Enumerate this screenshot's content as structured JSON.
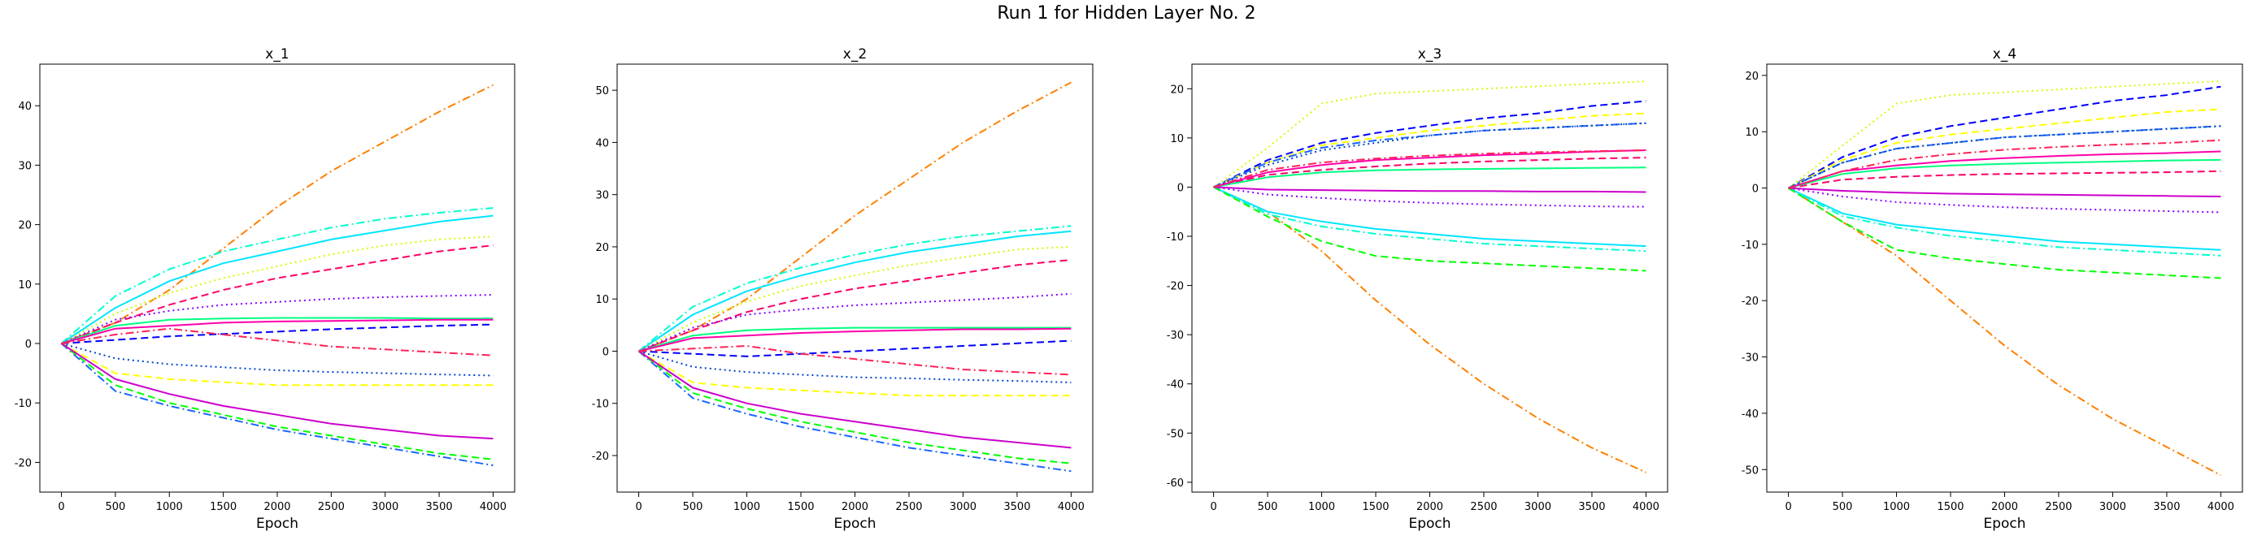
{
  "figure": {
    "suptitle": "Run 1 for Hidden Layer No. 2"
  },
  "series_colors": [
    "#ff8000",
    "#00ffcc",
    "#00e5ff",
    "#ccff00",
    "#ff0066",
    "#0000ff",
    "#8800ff",
    "#00ff80",
    "#ff00aa",
    "#ffff00",
    "#1a66ff",
    "#00ff00",
    "#0044cc",
    "#cc00cc",
    "#ff2255"
  ],
  "series_styles": [
    "dashdot",
    "dashdot",
    "solid",
    "dotted",
    "dashed",
    "dashed",
    "dotted",
    "solid",
    "solid",
    "dashed",
    "dashdot",
    "dashed",
    "dotted",
    "solid",
    "dashdot"
  ],
  "chart_data": [
    {
      "type": "line",
      "title": "x_1",
      "xlabel": "Epoch",
      "ylabel": "",
      "xlim": [
        -200,
        4200
      ],
      "ylim": [
        -25,
        47
      ],
      "xticks": [
        0,
        500,
        1000,
        1500,
        2000,
        2500,
        3000,
        3500,
        4000
      ],
      "yticks": [
        -20,
        -10,
        0,
        10,
        20,
        30,
        40
      ],
      "x": [
        0,
        500,
        1000,
        1500,
        2000,
        2500,
        3000,
        3500,
        4000
      ],
      "series": [
        {
          "values": [
            0,
            3.5,
            9,
            16,
            23,
            29,
            34,
            39,
            43.5
          ]
        },
        {
          "values": [
            0,
            8,
            12.5,
            15.5,
            17.5,
            19.5,
            21,
            22,
            22.8
          ]
        },
        {
          "values": [
            0,
            6,
            10.5,
            13.5,
            15.5,
            17.5,
            19,
            20.5,
            21.5
          ]
        },
        {
          "values": [
            0,
            5,
            8.5,
            11,
            13,
            15,
            16.5,
            17.5,
            18
          ]
        },
        {
          "values": [
            0,
            3.5,
            6.5,
            9,
            11,
            12.5,
            14,
            15.5,
            16.5
          ]
        },
        {
          "values": [
            0,
            0.6,
            1.2,
            1.6,
            2,
            2.4,
            2.7,
            3,
            3.2
          ]
        },
        {
          "values": [
            0,
            4,
            5.5,
            6.5,
            7,
            7.5,
            7.8,
            8,
            8.2
          ]
        },
        {
          "values": [
            0,
            3,
            4,
            4.2,
            4.3,
            4.3,
            4.3,
            4.2,
            4.2
          ]
        },
        {
          "values": [
            0,
            2.5,
            3,
            3.5,
            3.7,
            3.8,
            3.9,
            4,
            4
          ]
        },
        {
          "values": [
            0,
            -5,
            -6,
            -6.5,
            -7,
            -7,
            -7,
            -7,
            -7
          ]
        },
        {
          "values": [
            0,
            -8,
            -10.5,
            -12.5,
            -14.5,
            -16,
            -17.5,
            -19,
            -20.5
          ]
        },
        {
          "values": [
            0,
            -7,
            -10,
            -12,
            -14,
            -15.5,
            -17,
            -18.5,
            -19.5
          ]
        },
        {
          "values": [
            0,
            -2.5,
            -3.5,
            -4,
            -4.5,
            -4.8,
            -5,
            -5.2,
            -5.4
          ]
        },
        {
          "values": [
            0,
            -6,
            -8.5,
            -10.5,
            -12,
            -13.5,
            -14.5,
            -15.5,
            -16
          ]
        },
        {
          "values": [
            0,
            1.5,
            2.5,
            1.5,
            0.5,
            -0.5,
            -1,
            -1.5,
            -2
          ]
        }
      ]
    },
    {
      "type": "line",
      "title": "x_2",
      "xlabel": "Epoch",
      "ylabel": "",
      "xlim": [
        -200,
        4200
      ],
      "ylim": [
        -27,
        55
      ],
      "xticks": [
        0,
        500,
        1000,
        1500,
        2000,
        2500,
        3000,
        3500,
        4000
      ],
      "yticks": [
        -20,
        -10,
        0,
        10,
        20,
        30,
        40,
        50
      ],
      "x": [
        0,
        500,
        1000,
        1500,
        2000,
        2500,
        3000,
        3500,
        4000
      ],
      "series": [
        {
          "values": [
            0,
            4,
            10,
            18,
            26,
            33,
            40,
            46,
            51.5
          ]
        },
        {
          "values": [
            0,
            8.5,
            13,
            16,
            18.5,
            20.5,
            22,
            23,
            24
          ]
        },
        {
          "values": [
            0,
            7,
            11.5,
            14.5,
            17,
            19,
            20.5,
            22,
            23
          ]
        },
        {
          "values": [
            0,
            5.5,
            9.5,
            12.5,
            14.5,
            16.5,
            18,
            19.5,
            20
          ]
        },
        {
          "values": [
            0,
            4,
            7.5,
            10,
            12,
            13.5,
            15,
            16.5,
            17.5
          ]
        },
        {
          "values": [
            0,
            -0.5,
            -1,
            -0.5,
            0,
            0.5,
            1,
            1.5,
            2
          ]
        },
        {
          "values": [
            0,
            4.5,
            7,
            8,
            8.8,
            9.3,
            9.8,
            10.3,
            11
          ]
        },
        {
          "values": [
            0,
            3,
            4,
            4.3,
            4.5,
            4.5,
            4.5,
            4.5,
            4.5
          ]
        },
        {
          "values": [
            0,
            2.5,
            3,
            3.5,
            3.8,
            4,
            4.2,
            4.2,
            4.3
          ]
        },
        {
          "values": [
            0,
            -6,
            -7,
            -7.5,
            -8,
            -8.5,
            -8.5,
            -8.5,
            -8.5
          ]
        },
        {
          "values": [
            0,
            -9,
            -12,
            -14.5,
            -16.5,
            -18.5,
            -20,
            -21.5,
            -23
          ]
        },
        {
          "values": [
            0,
            -8,
            -11,
            -13.5,
            -15.5,
            -17.5,
            -19,
            -20.5,
            -21.5
          ]
        },
        {
          "values": [
            0,
            -3,
            -4,
            -4.5,
            -5,
            -5.2,
            -5.5,
            -5.7,
            -6
          ]
        },
        {
          "values": [
            0,
            -7,
            -10,
            -12,
            -13.5,
            -15,
            -16.5,
            -17.5,
            -18.5
          ]
        },
        {
          "values": [
            0,
            0.5,
            1,
            -0.5,
            -1.5,
            -2.5,
            -3.5,
            -4,
            -4.5
          ]
        }
      ]
    },
    {
      "type": "line",
      "title": "x_3",
      "xlabel": "Epoch",
      "ylabel": "",
      "xlim": [
        -200,
        4200
      ],
      "ylim": [
        -62,
        25
      ],
      "xticks": [
        0,
        500,
        1000,
        1500,
        2000,
        2500,
        3000,
        3500,
        4000
      ],
      "yticks": [
        -60,
        -50,
        -40,
        -30,
        -20,
        -10,
        0,
        10,
        20
      ],
      "x": [
        0,
        500,
        1000,
        1500,
        2000,
        2500,
        3000,
        3500,
        4000
      ],
      "series": [
        {
          "values": [
            0,
            -5,
            -13,
            -23,
            -32,
            -40,
            -47,
            -53,
            -58
          ]
        },
        {
          "values": [
            0,
            -5.5,
            -8,
            -9.5,
            -10.5,
            -11.5,
            -12,
            -12.5,
            -13
          ]
        },
        {
          "values": [
            0,
            -5,
            -7,
            -8.5,
            -9.5,
            -10.5,
            -11,
            -11.5,
            -12
          ]
        },
        {
          "values": [
            0,
            8,
            17,
            19,
            19.5,
            20,
            20.5,
            21,
            21.5
          ]
        },
        {
          "values": [
            0,
            2.5,
            3.5,
            4.2,
            4.8,
            5.2,
            5.5,
            5.8,
            6
          ]
        },
        {
          "values": [
            0,
            5.5,
            9,
            11,
            12.5,
            14,
            15,
            16.5,
            17.5
          ]
        },
        {
          "values": [
            0,
            -1.5,
            -2.2,
            -2.8,
            -3.2,
            -3.5,
            -3.7,
            -3.9,
            -4
          ]
        },
        {
          "values": [
            0,
            2,
            3,
            3.4,
            3.6,
            3.7,
            3.8,
            3.9,
            4
          ]
        },
        {
          "values": [
            0,
            3,
            4.5,
            5.5,
            6,
            6.5,
            6.8,
            7.2,
            7.5
          ]
        },
        {
          "values": [
            0,
            5,
            8.5,
            10,
            11.5,
            12.5,
            13.5,
            14.5,
            15
          ]
        },
        {
          "values": [
            0,
            5,
            8,
            9.5,
            10.5,
            11.5,
            12,
            12.5,
            13
          ]
        },
        {
          "values": [
            0,
            -6,
            -11,
            -14,
            -15,
            -15.5,
            -16,
            -16.5,
            -17
          ]
        },
        {
          "values": [
            0,
            4.5,
            7.5,
            9,
            10.5,
            11.5,
            12,
            12.5,
            13
          ]
        },
        {
          "values": [
            0,
            -0.5,
            -0.6,
            -0.7,
            -0.8,
            -0.8,
            -0.9,
            -0.9,
            -1
          ]
        },
        {
          "values": [
            0,
            3.5,
            5,
            5.8,
            6.4,
            6.8,
            7.1,
            7.3,
            7.5
          ]
        }
      ]
    },
    {
      "type": "line",
      "title": "x_4",
      "xlabel": "Epoch",
      "ylabel": "",
      "xlim": [
        -200,
        4200
      ],
      "ylim": [
        -54,
        22
      ],
      "xticks": [
        0,
        500,
        1000,
        1500,
        2000,
        2500,
        3000,
        3500,
        4000
      ],
      "yticks": [
        -50,
        -40,
        -30,
        -20,
        -10,
        0,
        10,
        20
      ],
      "x": [
        0,
        500,
        1000,
        1500,
        2000,
        2500,
        3000,
        3500,
        4000
      ],
      "series": [
        {
          "values": [
            0,
            -6,
            -12,
            -20,
            -28,
            -35,
            -41,
            -46,
            -51
          ]
        },
        {
          "values": [
            0,
            -5,
            -7,
            -8.5,
            -9.5,
            -10.5,
            -11,
            -11.5,
            -12
          ]
        },
        {
          "values": [
            0,
            -4.5,
            -6.5,
            -7.5,
            -8.5,
            -9.5,
            -10,
            -10.5,
            -11
          ]
        },
        {
          "values": [
            0,
            7.5,
            15,
            16.5,
            17,
            17.5,
            18,
            18.5,
            19
          ]
        },
        {
          "values": [
            0,
            1.5,
            2,
            2.3,
            2.5,
            2.6,
            2.7,
            2.8,
            3
          ]
        },
        {
          "values": [
            0,
            5.5,
            9,
            11,
            12.5,
            14,
            15.5,
            16.5,
            18
          ]
        },
        {
          "values": [
            0,
            -1.5,
            -2.5,
            -3,
            -3.4,
            -3.7,
            -3.9,
            -4.1,
            -4.3
          ]
        },
        {
          "values": [
            0,
            2.5,
            3.5,
            4,
            4.3,
            4.5,
            4.7,
            4.9,
            5
          ]
        },
        {
          "values": [
            0,
            3,
            4,
            4.8,
            5.3,
            5.7,
            6,
            6.2,
            6.5
          ]
        },
        {
          "values": [
            0,
            5,
            8,
            9.5,
            10.5,
            11.5,
            12.5,
            13.5,
            14
          ]
        },
        {
          "values": [
            0,
            4.5,
            7,
            8,
            9,
            9.5,
            10,
            10.5,
            11
          ]
        },
        {
          "values": [
            0,
            -6,
            -11,
            -12.5,
            -13.5,
            -14.5,
            -15,
            -15.5,
            -16
          ]
        },
        {
          "values": [
            0,
            4.5,
            7,
            8,
            9,
            9.5,
            10,
            10.5,
            11
          ]
        },
        {
          "values": [
            0,
            -0.5,
            -0.8,
            -1,
            -1.1,
            -1.2,
            -1.3,
            -1.4,
            -1.5
          ]
        },
        {
          "values": [
            0,
            3,
            5,
            6,
            6.8,
            7.3,
            7.7,
            8,
            8.5
          ]
        }
      ]
    }
  ]
}
